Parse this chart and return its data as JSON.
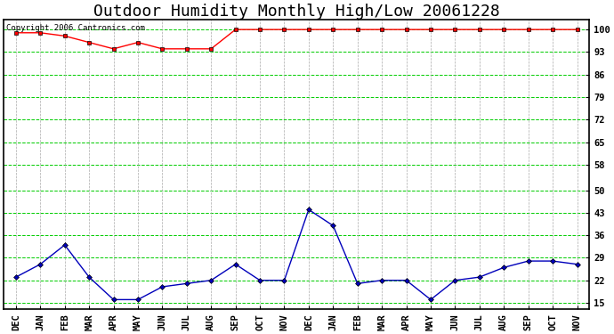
{
  "title": "Outdoor Humidity Monthly High/Low 20061228",
  "copyright_text": "Copyright 2006 Cantronics.com",
  "x_labels": [
    "DEC",
    "JAN",
    "FEB",
    "MAR",
    "APR",
    "MAY",
    "JUN",
    "JUL",
    "AUG",
    "SEP",
    "OCT",
    "NOV",
    "DEC",
    "JAN",
    "FEB",
    "MAR",
    "APR",
    "MAY",
    "JUN",
    "JUL",
    "AUG",
    "SEP",
    "OCT",
    "NOV"
  ],
  "high_values": [
    99,
    99,
    98,
    96,
    94,
    96,
    94,
    94,
    94,
    100,
    100,
    100,
    100,
    100,
    100,
    100,
    100,
    100,
    100,
    100,
    100,
    100,
    100,
    100
  ],
  "low_values": [
    23,
    27,
    33,
    23,
    16,
    16,
    20,
    21,
    22,
    27,
    22,
    22,
    44,
    39,
    21,
    22,
    22,
    16,
    22,
    23,
    26,
    28,
    28,
    27
  ],
  "high_color": "#ff0000",
  "low_color": "#0000bb",
  "bg_color": "#ffffff",
  "plot_bg_color": "#ffffff",
  "grid_green": "#00cc00",
  "grid_gray": "#aaaaaa",
  "yticks": [
    15,
    22,
    29,
    36,
    43,
    50,
    58,
    65,
    72,
    79,
    86,
    93,
    100
  ],
  "ylim": [
    13,
    103
  ],
  "title_fontsize": 13,
  "axis_fontsize": 7.5,
  "copyright_fontsize": 6.5
}
